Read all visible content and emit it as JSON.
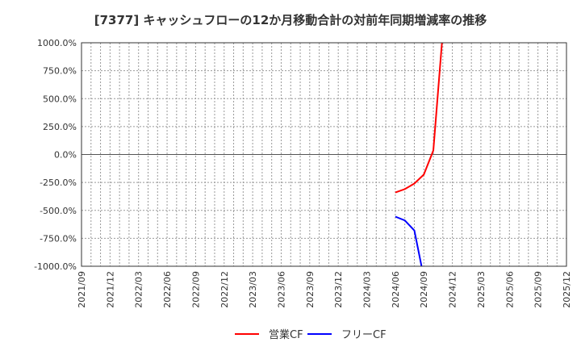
{
  "title": "[7377]  キャッシュフローの12か月移動合計の対前年同期増減率の推移",
  "chart_data": {
    "type": "line",
    "title": "[7377]  キャッシュフローの12か月移動合計の対前年同期増減率の推移",
    "xlabel": "",
    "ylabel": "",
    "ylim": [
      -1000,
      1000
    ],
    "y_ticks": [
      "1000.0%",
      "750.0%",
      "500.0%",
      "250.0%",
      "0.0%",
      "-250.0%",
      "-500.0%",
      "-750.0%",
      "-1000.0%"
    ],
    "x_ticks": [
      "2021/09",
      "2021/12",
      "2022/03",
      "2022/06",
      "2022/09",
      "2022/12",
      "2023/03",
      "2023/06",
      "2023/09",
      "2023/12",
      "2024/03",
      "2024/06",
      "2024/09",
      "2024/12",
      "2025/03",
      "2025/06",
      "2025/09",
      "2025/12"
    ],
    "x": [
      "2024/06",
      "2024/07",
      "2024/08",
      "2024/09",
      "2024/10",
      "2024/11"
    ],
    "series": [
      {
        "name": "営業CF",
        "color": "#ff0000",
        "values": [
          -340,
          -310,
          -260,
          -180,
          36,
          1100
        ]
      },
      {
        "name": "フリーCF",
        "color": "#0000ff",
        "values": [
          -556,
          -590,
          -680,
          -1100,
          null,
          null
        ]
      }
    ],
    "grid": true,
    "legend_position": "bottom"
  },
  "legend": [
    {
      "label": "営業CF",
      "color": "#ff0000"
    },
    {
      "label": "フリーCF",
      "color": "#0000ff"
    }
  ]
}
